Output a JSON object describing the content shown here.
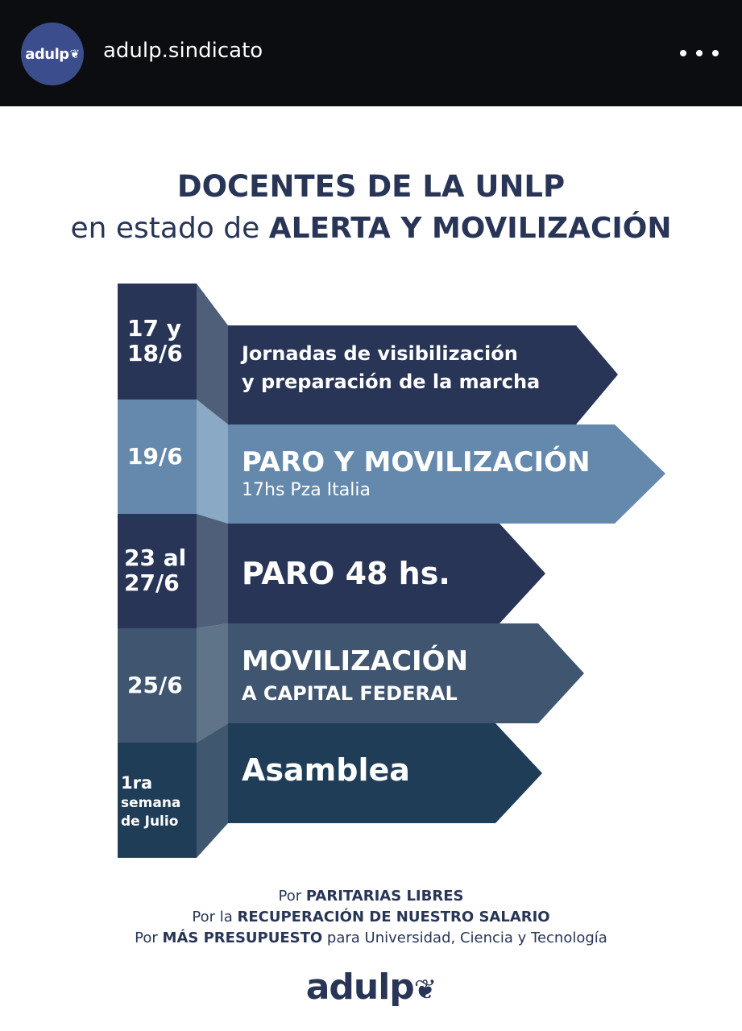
{
  "header": {
    "avatar_text": "adulp",
    "username": "adulp.sindicato"
  },
  "poster": {
    "headline_line1": "DOCENTES DE LA UNLP",
    "headline_line2_prefix": "en estado de",
    "headline_line2_bold": "ALERTA Y MOVILIZACIÓN",
    "events": [
      {
        "date": [
          "17 y",
          "18/6"
        ],
        "text": "Jornadas de visibilización",
        "text2": "y preparación de la marcha"
      },
      {
        "date": [
          "19/6"
        ],
        "text": "PARO Y MOVILIZACIÓN",
        "text2": "17hs Pza Italia"
      },
      {
        "date": [
          "23 al",
          "27/6"
        ],
        "text": "PARO 48 hs."
      },
      {
        "date": [
          "25/6"
        ],
        "text": "MOVILIZACIÓN",
        "text2": "A CAPITAL FEDERAL"
      },
      {
        "date": [
          "1ra",
          "semana",
          "de Julio"
        ],
        "text": "Asamblea"
      }
    ],
    "slogans": [
      {
        "pre": "Por",
        "bold": "PARITARIAS LIBRES",
        "post": ""
      },
      {
        "pre": "Por la",
        "bold": "RECUPERACIÓN DE NUESTRO SALARIO",
        "post": ""
      },
      {
        "pre": "Por",
        "bold": "MÁS PRESUPUESTO",
        "post": "para Universidad, Ciencia y Tecnología"
      }
    ],
    "logo_text": "adulp",
    "colors": {
      "navy": "#283556",
      "light_blue": "#6489ac",
      "steel": "#3f5570",
      "teal_navy": "#1f3d57"
    }
  }
}
